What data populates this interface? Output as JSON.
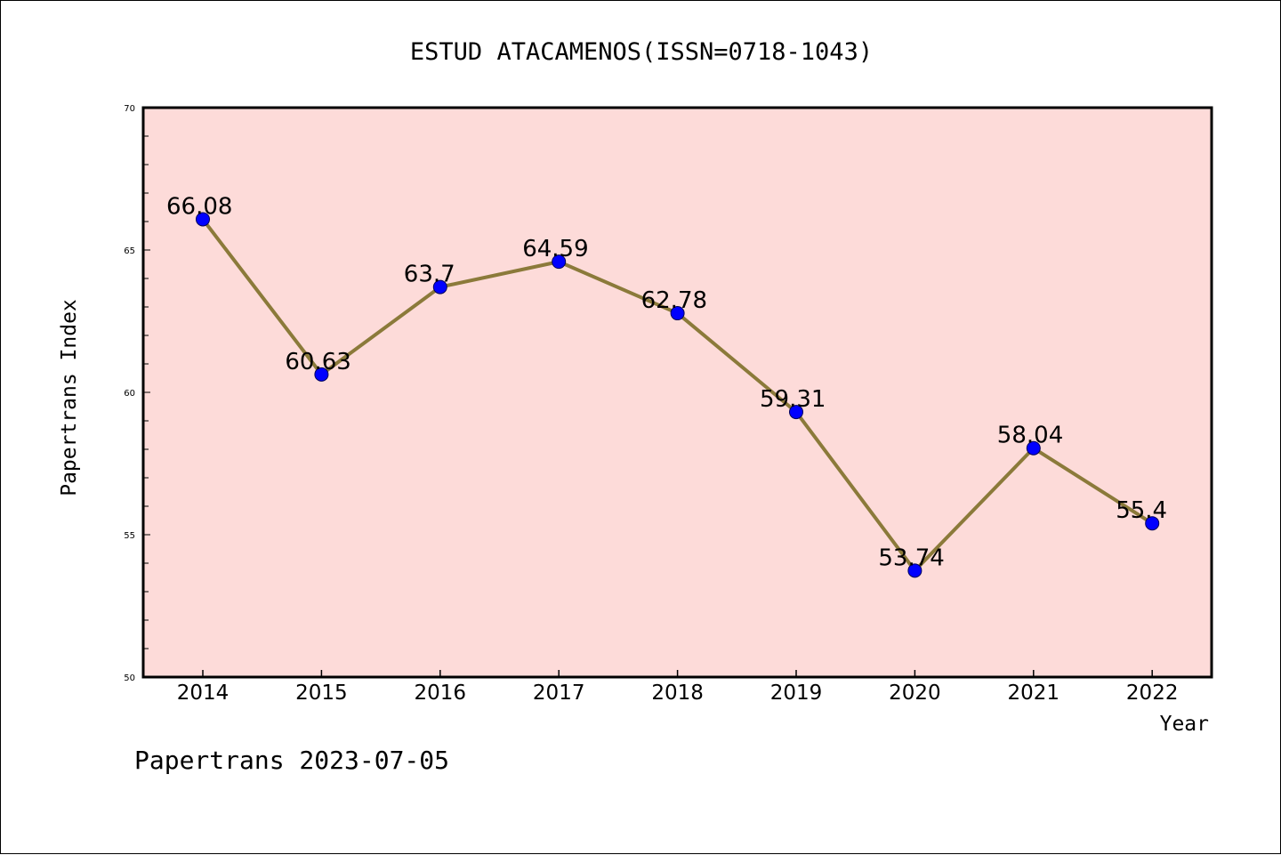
{
  "chart_data": {
    "type": "line",
    "title": "ESTUD ATACAMENOS(ISSN=0718-1043)",
    "xlabel": "Year",
    "ylabel": "Papertrans Index",
    "categories": [
      "2014",
      "2015",
      "2016",
      "2017",
      "2018",
      "2019",
      "2020",
      "2021",
      "2022"
    ],
    "series": [
      {
        "values": [
          66.08,
          60.63,
          63.7,
          64.59,
          62.78,
          59.31,
          53.74,
          58.04,
          55.4
        ],
        "data_labels": [
          "66.08",
          "60.63",
          "63.7",
          "64.59",
          "62.78",
          "59.31",
          "53.74",
          "58.04",
          "55.4"
        ],
        "line_color": "#8b7a3a",
        "marker_color": "#0000ff"
      }
    ],
    "ylim": [
      50,
      70
    ],
    "yticks": [
      "50",
      "55",
      "60",
      "65",
      "70"
    ],
    "plot_background": "#fddbd9",
    "grid": false,
    "legend": "none"
  },
  "footer": {
    "text": "Papertrans 2023-07-05"
  }
}
